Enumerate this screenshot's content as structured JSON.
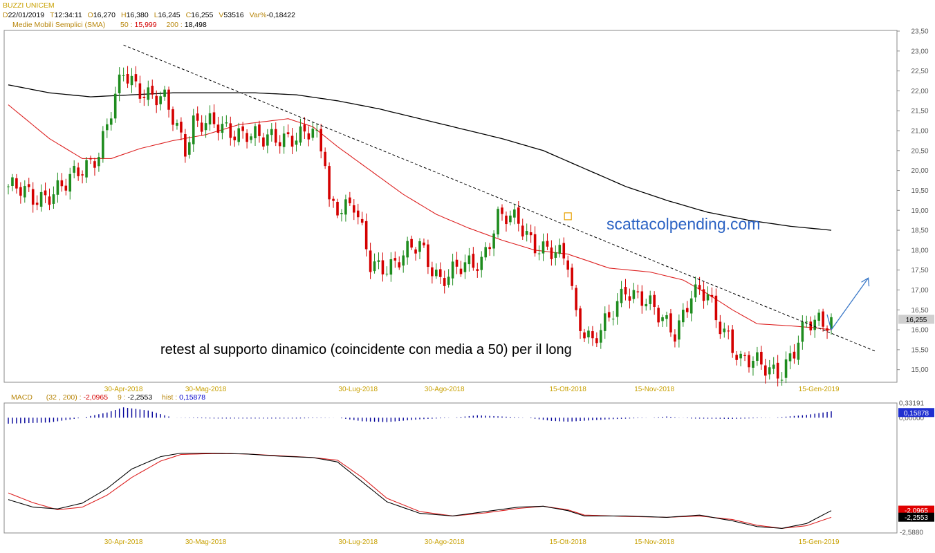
{
  "header": {
    "title": "BUZZI UNICEM",
    "line1": [
      {
        "k": "D",
        "v": "22/01/2019"
      },
      {
        "k": "T",
        "v": "12:34:11"
      },
      {
        "k": "O",
        "v": "16,270"
      },
      {
        "k": "H",
        "v": "16,380"
      },
      {
        "k": "L",
        "v": "16,245"
      },
      {
        "k": "C",
        "v": "16,255"
      },
      {
        "k": "V",
        "v": "53516"
      },
      {
        "k": "Var%",
        "v": "-0,18422"
      }
    ],
    "sma_label": "Medie Mobili Semplici (SMA)",
    "sma_50_label": "50 :",
    "sma_50_value": "15,999",
    "sma_200_label": "200 :",
    "sma_200_value": "18,498"
  },
  "macd_header": {
    "label": "MACD",
    "params": "(32 , 200) :",
    "macd_value": "-2,0965",
    "signal_label": "9 :",
    "signal_value": "-2,2553",
    "hist_label": "hist :",
    "hist_value": "0,15878"
  },
  "annotations": {
    "watermark": "scattacolpending.com",
    "note": "retest al supporto dinamico (coincidente con media a 50) per il long"
  },
  "colors": {
    "bull": "#1e8c1e",
    "bear": "#d40000",
    "sma50": "#dd2222",
    "sma200": "#000000",
    "trendline": "#000000",
    "arrow": "#3a78c8",
    "macd": "#000000",
    "signal": "#dd2222",
    "hist": "#000099"
  },
  "chart_data": [
    {
      "type": "candlestick",
      "title": "BUZZI UNICEM",
      "x_labels": [
        "30-Apr-2018",
        "30-Mag-2018",
        "30-Lug-2018",
        "30-Ago-2018",
        "15-Ott-2018",
        "15-Nov-2018",
        "15-Gen-2019"
      ],
      "x_label_index": [
        28,
        48,
        85,
        106,
        136,
        157,
        197
      ],
      "y_ticks": [
        "15,00",
        "15,50",
        "16,00",
        "16,50",
        "17,00",
        "17,50",
        "18,00",
        "18,50",
        "19,00",
        "19,50",
        "20,00",
        "20,50",
        "21,00",
        "21,50",
        "22,00",
        "22,50",
        "23,00",
        "23,50"
      ],
      "ylim": [
        14.7,
        23.5
      ],
      "last_price_label": "16,255",
      "last_price": 16.255,
      "close_path": [
        [
          0,
          19.6
        ],
        [
          6,
          19.3
        ],
        [
          14,
          19.6
        ],
        [
          22,
          20.5
        ],
        [
          28,
          22.4
        ],
        [
          32,
          22.1
        ],
        [
          38,
          21.7
        ],
        [
          43,
          20.6
        ],
        [
          45,
          21.3
        ],
        [
          52,
          21.0
        ],
        [
          58,
          21.0
        ],
        [
          62,
          20.7
        ],
        [
          68,
          20.9
        ],
        [
          74,
          20.9
        ],
        [
          77,
          20.3
        ],
        [
          78,
          19.2
        ],
        [
          84,
          19.1
        ],
        [
          88,
          17.6
        ],
        [
          94,
          17.7
        ],
        [
          100,
          18.1
        ],
        [
          105,
          17.3
        ],
        [
          110,
          17.5
        ],
        [
          115,
          17.8
        ],
        [
          119,
          18.8
        ],
        [
          124,
          18.7
        ],
        [
          128,
          18.2
        ],
        [
          132,
          17.9
        ],
        [
          136,
          17.7
        ],
        [
          138,
          16.4
        ],
        [
          142,
          15.7
        ],
        [
          146,
          16.2
        ],
        [
          150,
          17.1
        ],
        [
          154,
          16.8
        ],
        [
          158,
          16.3
        ],
        [
          162,
          16.0
        ],
        [
          166,
          16.9
        ],
        [
          170,
          16.8
        ],
        [
          172,
          16.3
        ],
        [
          175,
          15.9
        ],
        [
          178,
          15.2
        ],
        [
          183,
          15.1
        ],
        [
          188,
          15.0
        ],
        [
          191,
          15.4
        ],
        [
          194,
          16.1
        ],
        [
          197,
          16.3
        ],
        [
          200,
          16.26
        ]
      ],
      "sma50": [
        [
          0,
          21.65
        ],
        [
          10,
          20.8
        ],
        [
          18,
          20.3
        ],
        [
          25,
          20.3
        ],
        [
          32,
          20.55
        ],
        [
          40,
          20.75
        ],
        [
          48,
          20.9
        ],
        [
          56,
          21.15
        ],
        [
          64,
          21.25
        ],
        [
          68,
          21.3
        ],
        [
          74,
          21.1
        ],
        [
          80,
          20.6
        ],
        [
          88,
          20.0
        ],
        [
          96,
          19.4
        ],
        [
          104,
          18.9
        ],
        [
          112,
          18.55
        ],
        [
          120,
          18.25
        ],
        [
          128,
          18.0
        ],
        [
          136,
          17.9
        ],
        [
          146,
          17.55
        ],
        [
          156,
          17.45
        ],
        [
          164,
          17.25
        ],
        [
          170,
          16.9
        ],
        [
          176,
          16.5
        ],
        [
          182,
          16.15
        ],
        [
          190,
          16.1
        ],
        [
          196,
          16.05
        ],
        [
          200,
          16.0
        ]
      ],
      "sma200": [
        [
          0,
          22.15
        ],
        [
          10,
          21.95
        ],
        [
          20,
          21.85
        ],
        [
          30,
          21.9
        ],
        [
          40,
          21.95
        ],
        [
          50,
          21.95
        ],
        [
          60,
          21.95
        ],
        [
          70,
          21.9
        ],
        [
          80,
          21.75
        ],
        [
          90,
          21.55
        ],
        [
          100,
          21.3
        ],
        [
          110,
          21.05
        ],
        [
          120,
          20.8
        ],
        [
          130,
          20.5
        ],
        [
          140,
          20.05
        ],
        [
          150,
          19.6
        ],
        [
          160,
          19.25
        ],
        [
          170,
          18.95
        ],
        [
          180,
          18.75
        ],
        [
          190,
          18.6
        ],
        [
          200,
          18.5
        ]
      ],
      "trendline": [
        [
          28,
          23.15
        ],
        [
          211,
          15.45
        ]
      ],
      "arrow": [
        [
          200,
          16.0
        ],
        [
          209,
          17.3
        ]
      ],
      "marker": {
        "x": 136,
        "y": 18.85
      }
    },
    {
      "type": "line",
      "title": "MACD",
      "y_ticks": [
        "0,33191",
        "0,00000",
        "-2,5880"
      ],
      "ylim": [
        -2.588,
        0.33191
      ],
      "x_labels": [
        "30-Apr-2018",
        "30-Mag-2018",
        "30-Lug-2018",
        "30-Ago-2018",
        "15-Ott-2018",
        "15-Nov-2018",
        "15-Gen-2019"
      ],
      "macd_value_label": "-2,0965",
      "signal_value_label": "-2,2553",
      "hist_value_label": "0,15878",
      "macd": [
        [
          0,
          -1.85
        ],
        [
          6,
          -2.02
        ],
        [
          12,
          -2.06
        ],
        [
          18,
          -1.93
        ],
        [
          24,
          -1.6
        ],
        [
          30,
          -1.16
        ],
        [
          37,
          -0.88
        ],
        [
          42,
          -0.8
        ],
        [
          50,
          -0.8
        ],
        [
          58,
          -0.82
        ],
        [
          66,
          -0.87
        ],
        [
          74,
          -0.9
        ],
        [
          80,
          -1.0
        ],
        [
          86,
          -1.45
        ],
        [
          92,
          -1.9
        ],
        [
          100,
          -2.16
        ],
        [
          108,
          -2.22
        ],
        [
          116,
          -2.12
        ],
        [
          124,
          -2.02
        ],
        [
          130,
          -2.0
        ],
        [
          136,
          -2.1
        ],
        [
          140,
          -2.22
        ],
        [
          150,
          -2.22
        ],
        [
          160,
          -2.25
        ],
        [
          168,
          -2.2
        ],
        [
          176,
          -2.33
        ],
        [
          182,
          -2.46
        ],
        [
          188,
          -2.5
        ],
        [
          194,
          -2.39
        ],
        [
          200,
          -2.1
        ]
      ],
      "signal": [
        [
          0,
          -1.7
        ],
        [
          6,
          -1.92
        ],
        [
          12,
          -2.08
        ],
        [
          18,
          -2.02
        ],
        [
          24,
          -1.75
        ],
        [
          30,
          -1.35
        ],
        [
          37,
          -0.98
        ],
        [
          42,
          -0.83
        ],
        [
          50,
          -0.81
        ],
        [
          58,
          -0.82
        ],
        [
          66,
          -0.86
        ],
        [
          74,
          -0.9
        ],
        [
          80,
          -0.96
        ],
        [
          86,
          -1.35
        ],
        [
          92,
          -1.82
        ],
        [
          100,
          -2.12
        ],
        [
          108,
          -2.22
        ],
        [
          116,
          -2.15
        ],
        [
          124,
          -2.05
        ],
        [
          130,
          -2.0
        ],
        [
          136,
          -2.08
        ],
        [
          140,
          -2.2
        ],
        [
          150,
          -2.23
        ],
        [
          160,
          -2.25
        ],
        [
          168,
          -2.22
        ],
        [
          176,
          -2.3
        ],
        [
          182,
          -2.43
        ],
        [
          188,
          -2.5
        ],
        [
          194,
          -2.44
        ],
        [
          200,
          -2.25
        ]
      ],
      "hist": [
        [
          0,
          -0.15
        ],
        [
          10,
          -0.12
        ],
        [
          18,
          0.0
        ],
        [
          24,
          0.13
        ],
        [
          28,
          0.26
        ],
        [
          34,
          0.18
        ],
        [
          40,
          0.0
        ],
        [
          50,
          -0.02
        ],
        [
          70,
          -0.02
        ],
        [
          80,
          0.0
        ],
        [
          86,
          -0.09
        ],
        [
          92,
          -0.11
        ],
        [
          100,
          -0.04
        ],
        [
          108,
          0.0
        ],
        [
          114,
          0.06
        ],
        [
          120,
          0.03
        ],
        [
          126,
          0.0
        ],
        [
          132,
          -0.08
        ],
        [
          136,
          -0.1
        ],
        [
          146,
          -0.04
        ],
        [
          156,
          0.0
        ],
        [
          160,
          0.03
        ],
        [
          166,
          -0.02
        ],
        [
          176,
          -0.03
        ],
        [
          186,
          0.0
        ],
        [
          194,
          0.07
        ],
        [
          200,
          0.16
        ]
      ]
    }
  ]
}
